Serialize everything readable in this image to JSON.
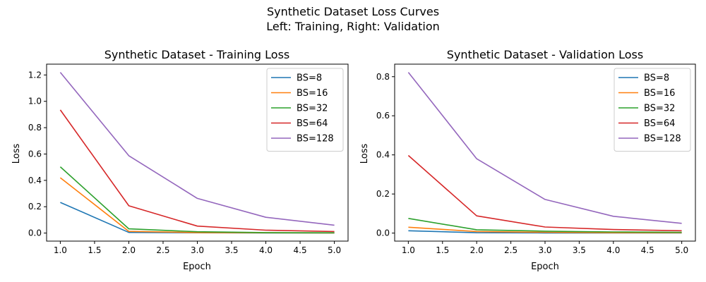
{
  "figure": {
    "suptitle_line1": "Synthetic Dataset Loss Curves",
    "suptitle_line2": "Left: Training, Right: Validation"
  },
  "chart_data": [
    {
      "type": "line",
      "title": "Synthetic Dataset - Training Loss",
      "xlabel": "Epoch",
      "ylabel": "Loss",
      "xlim": [
        0.8,
        5.2
      ],
      "ylim": [
        -0.061,
        1.282
      ],
      "xticks": [
        "1.0",
        "1.5",
        "2.0",
        "2.5",
        "3.0",
        "3.5",
        "4.0",
        "4.5",
        "5.0"
      ],
      "xtick_values": [
        1.0,
        1.5,
        2.0,
        2.5,
        3.0,
        3.5,
        4.0,
        4.5,
        5.0
      ],
      "yticks": [
        "0.0",
        "0.2",
        "0.4",
        "0.6",
        "0.8",
        "1.0",
        "1.2"
      ],
      "ytick_values": [
        0.0,
        0.2,
        0.4,
        0.6,
        0.8,
        1.0,
        1.2
      ],
      "legend_position": "top-right",
      "x": [
        1,
        2,
        3,
        4,
        5
      ],
      "series": [
        {
          "name": "BS=8",
          "color": "#1f77b4",
          "values": [
            0.233,
            0.005,
            0.002,
            0.001,
            0.001
          ]
        },
        {
          "name": "BS=16",
          "color": "#ff7f0e",
          "values": [
            0.42,
            0.013,
            0.004,
            0.002,
            0.001
          ]
        },
        {
          "name": "BS=32",
          "color": "#2ca02c",
          "values": [
            0.503,
            0.032,
            0.01,
            0.004,
            0.002
          ]
        },
        {
          "name": "BS=64",
          "color": "#d62728",
          "values": [
            0.935,
            0.207,
            0.053,
            0.022,
            0.012
          ]
        },
        {
          "name": "BS=128",
          "color": "#9467bd",
          "values": [
            1.22,
            0.587,
            0.263,
            0.12,
            0.06
          ]
        }
      ]
    },
    {
      "type": "line",
      "title": "Synthetic Dataset - Validation Loss",
      "xlabel": "Epoch",
      "ylabel": "Loss",
      "xlim": [
        0.8,
        5.2
      ],
      "ylim": [
        -0.041,
        0.864
      ],
      "xticks": [
        "1.0",
        "1.5",
        "2.0",
        "2.5",
        "3.0",
        "3.5",
        "4.0",
        "4.5",
        "5.0"
      ],
      "xtick_values": [
        1.0,
        1.5,
        2.0,
        2.5,
        3.0,
        3.5,
        4.0,
        4.5,
        5.0
      ],
      "yticks": [
        "0.0",
        "0.2",
        "0.4",
        "0.6",
        "0.8"
      ],
      "ytick_values": [
        0.0,
        0.2,
        0.4,
        0.6,
        0.8
      ],
      "legend_position": "top-right",
      "x": [
        1,
        2,
        3,
        4,
        5
      ],
      "series": [
        {
          "name": "BS=8",
          "color": "#1f77b4",
          "values": [
            0.012,
            0.002,
            0.001,
            0.001,
            0.001
          ]
        },
        {
          "name": "BS=16",
          "color": "#ff7f0e",
          "values": [
            0.03,
            0.008,
            0.004,
            0.002,
            0.002
          ]
        },
        {
          "name": "BS=32",
          "color": "#2ca02c",
          "values": [
            0.075,
            0.017,
            0.01,
            0.006,
            0.004
          ]
        },
        {
          "name": "BS=64",
          "color": "#d62728",
          "values": [
            0.397,
            0.088,
            0.031,
            0.018,
            0.012
          ]
        },
        {
          "name": "BS=128",
          "color": "#9467bd",
          "values": [
            0.822,
            0.38,
            0.172,
            0.086,
            0.05
          ]
        }
      ]
    }
  ]
}
